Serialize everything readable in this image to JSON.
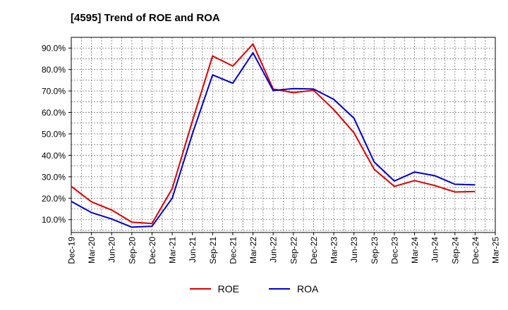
{
  "chart_data": {
    "type": "line",
    "title": "[4595]  Trend of ROE and ROA",
    "xlabel": "",
    "ylabel": "",
    "ylim": [
      4,
      95
    ],
    "yticks": [
      10,
      20,
      30,
      40,
      50,
      60,
      70,
      80,
      90
    ],
    "ytick_labels": [
      "10.0%",
      "20.0%",
      "30.0%",
      "40.0%",
      "50.0%",
      "60.0%",
      "70.0%",
      "80.0%",
      "90.0%"
    ],
    "categories": [
      "Dec-19",
      "Mar-20",
      "Jun-20",
      "Sep-20",
      "Dec-20",
      "Mar-21",
      "Jun-21",
      "Sep-21",
      "Dec-21",
      "Mar-22",
      "Jun-22",
      "Sep-22",
      "Dec-22",
      "Mar-23",
      "Jun-23",
      "Sep-23",
      "Dec-23",
      "Mar-24",
      "Jun-24",
      "Sep-24",
      "Dec-24",
      "Mar-25"
    ],
    "grid": true,
    "legend_position": "bottom-center",
    "series": [
      {
        "name": "ROE",
        "color": "#dd0000",
        "x": [
          "Dec-19",
          "Mar-20",
          "Jun-20",
          "Sep-20",
          "Dec-20",
          "Mar-21",
          "Jun-21",
          "Sep-21",
          "Dec-21",
          "Mar-22",
          "Jun-22",
          "Sep-22",
          "Dec-22",
          "Mar-23",
          "Jun-23",
          "Sep-23",
          "Dec-23",
          "Mar-24",
          "Jun-24",
          "Sep-24",
          "Dec-24"
        ],
        "values": [
          25.5,
          18.3,
          14.5,
          8.8,
          8.2,
          24.5,
          56,
          86.3,
          81.6,
          91.9,
          70.9,
          69.2,
          70.3,
          61.3,
          50.5,
          33.5,
          25.5,
          28.2,
          25.9,
          22.9,
          23.1
        ]
      },
      {
        "name": "ROA",
        "color": "#0000cc",
        "x": [
          "Dec-19",
          "Mar-20",
          "Jun-20",
          "Sep-20",
          "Dec-20",
          "Mar-21",
          "Jun-21",
          "Sep-21",
          "Dec-21",
          "Mar-22",
          "Jun-22",
          "Sep-22",
          "Dec-22",
          "Mar-23",
          "Jun-23",
          "Sep-23",
          "Dec-23",
          "Mar-24",
          "Jun-24",
          "Sep-24",
          "Dec-24"
        ],
        "values": [
          18.5,
          13.3,
          10.3,
          6.5,
          6.9,
          20,
          50,
          77.5,
          73.6,
          87.8,
          70.2,
          71.1,
          70.9,
          66.1,
          57.3,
          36.9,
          28,
          32.2,
          30.5,
          26.5,
          26.2
        ]
      }
    ]
  }
}
